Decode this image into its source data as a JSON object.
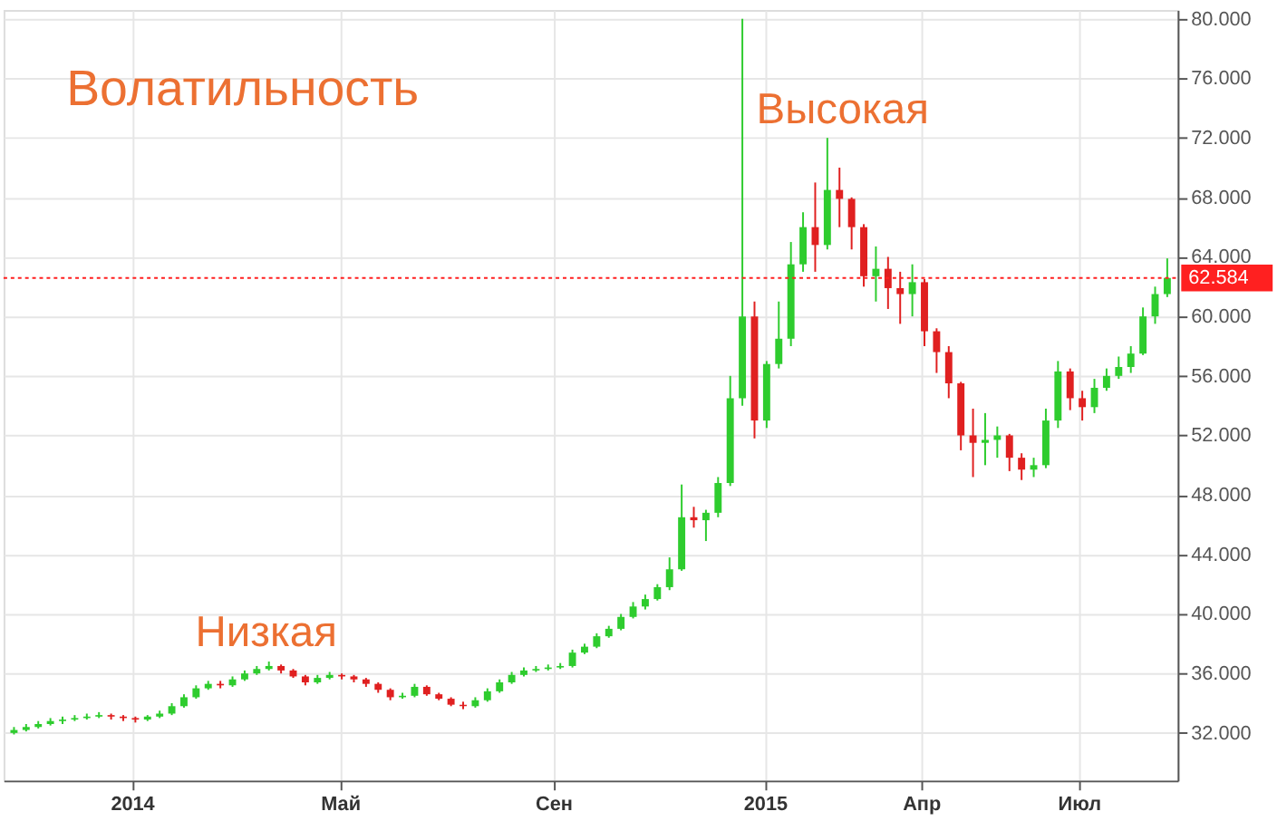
{
  "chart_data": {
    "type": "candlestick",
    "title": "Волатильность",
    "annotations": [
      "Низкая",
      "Высокая"
    ],
    "x": [
      "2013-10-25",
      "2013-11-01",
      "2013-11-08",
      "2013-11-15",
      "2013-11-22",
      "2013-11-29",
      "2013-12-06",
      "2013-12-13",
      "2013-12-20",
      "2013-12-27",
      "2014-01-03",
      "2014-01-10",
      "2014-01-17",
      "2014-01-24",
      "2014-01-31",
      "2014-02-07",
      "2014-02-14",
      "2014-02-21",
      "2014-02-28",
      "2014-03-07",
      "2014-03-14",
      "2014-03-21",
      "2014-03-28",
      "2014-04-04",
      "2014-04-11",
      "2014-04-18",
      "2014-04-25",
      "2014-05-02",
      "2014-05-09",
      "2014-05-16",
      "2014-05-23",
      "2014-05-30",
      "2014-06-06",
      "2014-06-13",
      "2014-06-20",
      "2014-06-27",
      "2014-07-04",
      "2014-07-11",
      "2014-07-18",
      "2014-07-25",
      "2014-08-01",
      "2014-08-08",
      "2014-08-15",
      "2014-08-22",
      "2014-08-29",
      "2014-09-05",
      "2014-09-12",
      "2014-09-19",
      "2014-09-26",
      "2014-10-03",
      "2014-10-10",
      "2014-10-17",
      "2014-10-24",
      "2014-10-31",
      "2014-11-07",
      "2014-11-14",
      "2014-11-21",
      "2014-11-28",
      "2014-12-05",
      "2014-12-12",
      "2014-12-19",
      "2014-12-26",
      "2015-01-02",
      "2015-01-09",
      "2015-01-16",
      "2015-01-23",
      "2015-01-30",
      "2015-02-06",
      "2015-02-13",
      "2015-02-20",
      "2015-02-27",
      "2015-03-06",
      "2015-03-13",
      "2015-03-20",
      "2015-03-27",
      "2015-04-03",
      "2015-04-10",
      "2015-04-17",
      "2015-04-24",
      "2015-05-01",
      "2015-05-08",
      "2015-05-15",
      "2015-05-22",
      "2015-05-29",
      "2015-06-05",
      "2015-06-12",
      "2015-06-19",
      "2015-06-26",
      "2015-07-03",
      "2015-07-10",
      "2015-07-17",
      "2015-07-24",
      "2015-07-31",
      "2015-08-07",
      "2015-08-14",
      "2015-08-21"
    ],
    "ohlc": [
      [
        32.0,
        32.4,
        31.9,
        32.2
      ],
      [
        32.2,
        32.6,
        32.1,
        32.4
      ],
      [
        32.4,
        32.8,
        32.3,
        32.6
      ],
      [
        32.6,
        33.0,
        32.5,
        32.8
      ],
      [
        32.8,
        33.1,
        32.6,
        32.9
      ],
      [
        32.9,
        33.2,
        32.8,
        33.0
      ],
      [
        33.0,
        33.3,
        32.9,
        33.1
      ],
      [
        33.1,
        33.4,
        33.0,
        33.2
      ],
      [
        33.2,
        33.3,
        32.9,
        33.1
      ],
      [
        33.1,
        33.2,
        32.8,
        33.0
      ],
      [
        33.0,
        33.1,
        32.7,
        32.9
      ],
      [
        32.9,
        33.2,
        32.8,
        33.1
      ],
      [
        33.1,
        33.5,
        33.0,
        33.3
      ],
      [
        33.3,
        34.0,
        33.2,
        33.8
      ],
      [
        33.8,
        34.6,
        33.7,
        34.4
      ],
      [
        34.4,
        35.2,
        34.3,
        35.0
      ],
      [
        35.0,
        35.5,
        34.9,
        35.3
      ],
      [
        35.3,
        35.5,
        35.0,
        35.2
      ],
      [
        35.2,
        35.8,
        35.1,
        35.6
      ],
      [
        35.6,
        36.2,
        35.5,
        36.0
      ],
      [
        36.0,
        36.5,
        35.9,
        36.3
      ],
      [
        36.3,
        36.8,
        36.2,
        36.5
      ],
      [
        36.5,
        36.6,
        36.0,
        36.2
      ],
      [
        36.2,
        36.3,
        35.7,
        35.8
      ],
      [
        35.8,
        35.9,
        35.2,
        35.4
      ],
      [
        35.4,
        35.9,
        35.3,
        35.7
      ],
      [
        35.7,
        36.1,
        35.6,
        35.9
      ],
      [
        35.9,
        36.0,
        35.6,
        35.8
      ],
      [
        35.8,
        35.9,
        35.4,
        35.6
      ],
      [
        35.6,
        35.7,
        35.1,
        35.3
      ],
      [
        35.3,
        35.4,
        34.7,
        34.9
      ],
      [
        34.9,
        35.0,
        34.2,
        34.4
      ],
      [
        34.4,
        34.7,
        34.3,
        34.5
      ],
      [
        34.5,
        35.3,
        34.4,
        35.1
      ],
      [
        35.1,
        35.2,
        34.5,
        34.6
      ],
      [
        34.6,
        34.7,
        34.2,
        34.3
      ],
      [
        34.3,
        34.4,
        33.8,
        33.9
      ],
      [
        33.9,
        34.1,
        33.6,
        33.8
      ],
      [
        33.8,
        34.4,
        33.7,
        34.2
      ],
      [
        34.2,
        35.0,
        34.1,
        34.8
      ],
      [
        34.8,
        35.6,
        34.7,
        35.4
      ],
      [
        35.4,
        36.1,
        35.3,
        35.9
      ],
      [
        35.9,
        36.4,
        35.8,
        36.2
      ],
      [
        36.2,
        36.5,
        36.1,
        36.3
      ],
      [
        36.3,
        36.6,
        36.2,
        36.4
      ],
      [
        36.4,
        36.7,
        36.3,
        36.5
      ],
      [
        36.5,
        37.6,
        36.4,
        37.4
      ],
      [
        37.4,
        38.0,
        37.3,
        37.8
      ],
      [
        37.8,
        38.7,
        37.7,
        38.5
      ],
      [
        38.5,
        39.2,
        38.4,
        39.0
      ],
      [
        39.0,
        40.0,
        38.9,
        39.8
      ],
      [
        39.8,
        40.8,
        39.7,
        40.5
      ],
      [
        40.5,
        41.3,
        40.3,
        41.0
      ],
      [
        41.0,
        42.0,
        40.9,
        41.8
      ],
      [
        41.8,
        43.8,
        41.6,
        43.0
      ],
      [
        43.0,
        48.7,
        42.9,
        46.5
      ],
      [
        46.5,
        47.2,
        45.8,
        46.3
      ],
      [
        46.3,
        47.0,
        44.9,
        46.8
      ],
      [
        46.8,
        49.2,
        46.5,
        48.8
      ],
      [
        48.8,
        56.0,
        48.6,
        54.5
      ],
      [
        54.5,
        80.0,
        54.0,
        60.0
      ],
      [
        60.0,
        61.0,
        51.8,
        53.0
      ],
      [
        53.0,
        57.0,
        52.5,
        56.8
      ],
      [
        56.8,
        61.0,
        56.5,
        58.5
      ],
      [
        58.5,
        65.0,
        58.0,
        63.5
      ],
      [
        63.5,
        67.0,
        63.0,
        66.0
      ],
      [
        66.0,
        69.0,
        63.0,
        64.8
      ],
      [
        64.8,
        72.0,
        64.5,
        68.5
      ],
      [
        68.5,
        70.0,
        66.0,
        67.9
      ],
      [
        67.9,
        68.0,
        64.5,
        66.0
      ],
      [
        66.0,
        66.2,
        62.0,
        62.7
      ],
      [
        62.7,
        64.7,
        61.0,
        63.2
      ],
      [
        63.2,
        64.0,
        60.5,
        61.9
      ],
      [
        61.9,
        63.0,
        59.5,
        61.5
      ],
      [
        61.5,
        63.5,
        60.0,
        62.3
      ],
      [
        62.3,
        62.5,
        58.0,
        59.0
      ],
      [
        59.0,
        59.2,
        56.2,
        57.6
      ],
      [
        57.6,
        58.0,
        54.5,
        55.5
      ],
      [
        55.5,
        55.6,
        51.0,
        52.0
      ],
      [
        52.0,
        53.8,
        49.2,
        51.5
      ],
      [
        51.5,
        53.5,
        50.0,
        51.7
      ],
      [
        51.7,
        52.6,
        50.5,
        52.0
      ],
      [
        52.0,
        52.1,
        49.6,
        50.5
      ],
      [
        50.5,
        50.8,
        49.0,
        49.7
      ],
      [
        49.7,
        50.5,
        49.2,
        50.0
      ],
      [
        50.0,
        53.8,
        49.8,
        53.0
      ],
      [
        53.0,
        57.0,
        52.5,
        56.3
      ],
      [
        56.3,
        56.5,
        53.7,
        54.5
      ],
      [
        54.5,
        55.0,
        53.0,
        53.9
      ],
      [
        53.9,
        55.8,
        53.5,
        55.2
      ],
      [
        55.2,
        56.5,
        55.0,
        56.0
      ],
      [
        56.0,
        57.3,
        55.8,
        56.6
      ],
      [
        56.6,
        58.0,
        56.2,
        57.5
      ],
      [
        57.5,
        60.6,
        57.4,
        60.0
      ],
      [
        60.0,
        62.0,
        59.5,
        61.5
      ],
      [
        61.5,
        63.9,
        61.3,
        62.584
      ]
    ],
    "colors": [
      "#2ecc2e",
      "#2ecc2e",
      "#2ecc2e",
      "#2ecc2e",
      "#2ecc2e",
      "#2ecc2e",
      "#2ecc2e",
      "#2ecc2e",
      "#e02020",
      "#e02020",
      "#e02020",
      "#2ecc2e",
      "#2ecc2e",
      "#2ecc2e",
      "#2ecc2e",
      "#2ecc2e",
      "#2ecc2e",
      "#e02020",
      "#2ecc2e",
      "#2ecc2e",
      "#2ecc2e",
      "#2ecc2e",
      "#e02020",
      "#e02020",
      "#e02020",
      "#2ecc2e",
      "#2ecc2e",
      "#e02020",
      "#e02020",
      "#e02020",
      "#e02020",
      "#e02020",
      "#2ecc2e",
      "#2ecc2e",
      "#e02020",
      "#e02020",
      "#e02020",
      "#e02020",
      "#2ecc2e",
      "#2ecc2e",
      "#2ecc2e",
      "#2ecc2e",
      "#2ecc2e",
      "#2ecc2e",
      "#2ecc2e",
      "#2ecc2e",
      "#2ecc2e",
      "#2ecc2e",
      "#2ecc2e",
      "#2ecc2e",
      "#2ecc2e",
      "#2ecc2e",
      "#2ecc2e",
      "#2ecc2e",
      "#2ecc2e",
      "#2ecc2e",
      "#e02020",
      "#2ecc2e",
      "#2ecc2e",
      "#2ecc2e",
      "#2ecc2e",
      "#e02020",
      "#2ecc2e",
      "#2ecc2e",
      "#2ecc2e",
      "#2ecc2e",
      "#e02020",
      "#2ecc2e",
      "#e02020",
      "#e02020",
      "#e02020",
      "#2ecc2e",
      "#e02020",
      "#e02020",
      "#2ecc2e",
      "#e02020",
      "#e02020",
      "#e02020",
      "#e02020",
      "#e02020",
      "#2ecc2e",
      "#2ecc2e",
      "#e02020",
      "#e02020",
      "#2ecc2e",
      "#2ecc2e",
      "#2ecc2e",
      "#e02020",
      "#e02020",
      "#2ecc2e",
      "#2ecc2e",
      "#2ecc2e",
      "#2ecc2e",
      "#2ecc2e",
      "#2ecc2e",
      "#2ecc2e"
    ],
    "xlim": [
      "2013-10-19",
      "2015-08-27"
    ],
    "xticks": [
      {
        "value": "2014-01-01",
        "label": "2014"
      },
      {
        "value": "2014-05-01",
        "label": "Май"
      },
      {
        "value": "2014-09-01",
        "label": "Сен"
      },
      {
        "value": "2015-01-01",
        "label": "2015"
      },
      {
        "value": "2015-04-01",
        "label": "Апр"
      },
      {
        "value": "2015-07-01",
        "label": "Июл"
      }
    ],
    "ylim": [
      28.8,
      80.6
    ],
    "yticks": [
      {
        "value": 32,
        "label": "32.000"
      },
      {
        "value": 36,
        "label": "36.000"
      },
      {
        "value": 40,
        "label": "40.000"
      },
      {
        "value": 44,
        "label": "44.000"
      },
      {
        "value": 48,
        "label": "48.000"
      },
      {
        "value": 52,
        "label": "52.000"
      },
      {
        "value": 56,
        "label": "56.000"
      },
      {
        "value": 60,
        "label": "60.000"
      },
      {
        "value": 64,
        "label": "64.000"
      },
      {
        "value": 68,
        "label": "68.000"
      },
      {
        "value": 72,
        "label": "72.000"
      },
      {
        "value": 76,
        "label": "76.000"
      },
      {
        "value": 80,
        "label": "80.000"
      }
    ],
    "ref_lines": [
      {
        "axis": "y",
        "value": 62.584,
        "label": "62.584",
        "color": "#ff2020",
        "line_style": "dotted"
      }
    ],
    "grid": true
  }
}
